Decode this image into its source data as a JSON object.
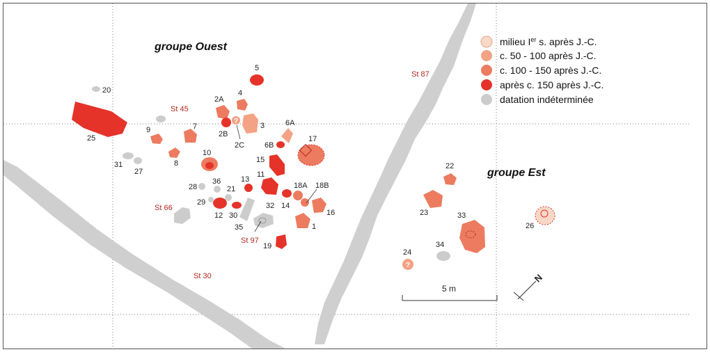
{
  "colors": {
    "milieu_1er": "#f9d8c8",
    "c_50_100": "#f4a285",
    "c_100_150": "#ec7b5f",
    "apres_150": "#e5332a",
    "indeterminee": "#cccccc",
    "road": "#cfcfcf",
    "st_label": "#b5271c"
  },
  "groups": {
    "west": "groupe Ouest",
    "east": "groupe Est"
  },
  "structures": {
    "st87": "St 87",
    "st45": "St 45",
    "st66": "St 66",
    "st97": "St 97",
    "st30": "St 30"
  },
  "legend": {
    "items": [
      {
        "label_pre": "milieu I",
        "label_sup": "er",
        "label_post": " s. après J.-C.",
        "category": "milieu_1er"
      },
      {
        "label": "c. 50 - 100 après J.-C.",
        "category": "c_50_100"
      },
      {
        "label": "c. 100 - 150 après J.-C.",
        "category": "c_100_150"
      },
      {
        "label": "après c. 150 après J.-C.",
        "category": "apres_150"
      },
      {
        "label": "datation indéterminée",
        "category": "indeterminee"
      }
    ]
  },
  "scale": {
    "label": "5 m"
  },
  "north": {
    "label": "N"
  },
  "question_mark": "?",
  "features": {
    "f1": "1",
    "f2A": "2A",
    "f2B": "2B",
    "f2C": "2C",
    "f3": "3",
    "f4": "4",
    "f5": "5",
    "f6A": "6A",
    "f6B": "6B",
    "f7": "7",
    "f8": "8",
    "f9": "9",
    "f10": "10",
    "f11": "11",
    "f12": "12",
    "f13": "13",
    "f14": "14",
    "f15": "15",
    "f16": "16",
    "f17": "17",
    "f18A": "18A",
    "f18B": "18B",
    "f19": "19",
    "f20": "20",
    "f21": "21",
    "f22": "22",
    "f23": "23",
    "f24": "24",
    "f25": "25",
    "f26": "26",
    "f27": "27",
    "f28": "28",
    "f29": "29",
    "f30": "30",
    "f31": "31",
    "f32": "32",
    "f33": "33",
    "f34": "34",
    "f35": "35",
    "f36": "36"
  }
}
